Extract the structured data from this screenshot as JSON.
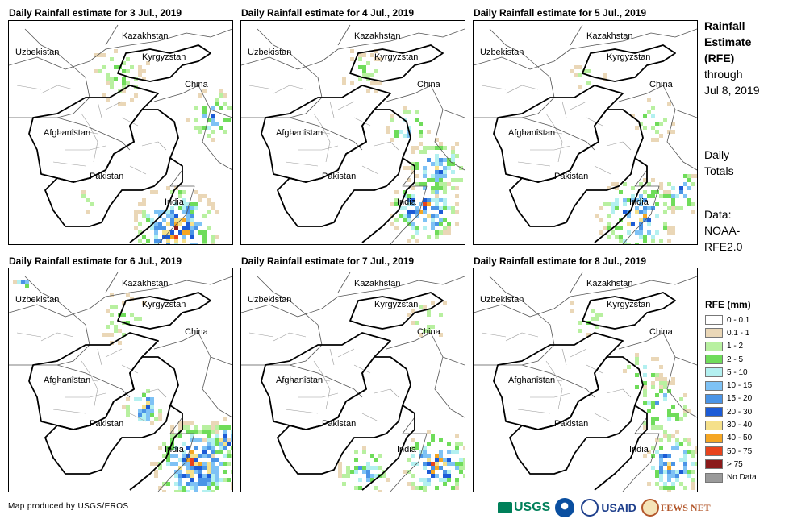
{
  "panels": [
    {
      "title": "Daily Rainfall estimate for 3 Jul., 2019",
      "date": "3 Jul., 2019",
      "intensity": "heavy south India, moderate north"
    },
    {
      "title": "Daily Rainfall estimate for 4 Jul., 2019",
      "date": "4 Jul., 2019",
      "intensity": "moderate"
    },
    {
      "title": "Daily Rainfall estimate for 5 Jul., 2019",
      "date": "5 Jul., 2019",
      "intensity": "moderate-heavy east"
    },
    {
      "title": "Daily Rainfall estimate for 6 Jul., 2019",
      "date": "6 Jul., 2019",
      "intensity": "heavy widespread"
    },
    {
      "title": "Daily Rainfall estimate for 7 Jul., 2019",
      "date": "7 Jul., 2019",
      "intensity": "moderate south"
    },
    {
      "title": "Daily Rainfall estimate for 8 Jul., 2019",
      "date": "8 Jul., 2019",
      "intensity": "moderate east"
    }
  ],
  "map_labels": {
    "kazakhstan": "Kazakhstan",
    "uzbekistan": "Uzbekistan",
    "kyrgyzstan": "Kyrgyzstan",
    "china": "China",
    "afghanistan": "Afghanistan",
    "pakistan": "Pakistan",
    "india": "India"
  },
  "side": {
    "title_line1": "Rainfall",
    "title_line2": "Estimate",
    "title_line3": "(RFE)",
    "through": "through",
    "through_date": "Jul 8, 2019",
    "daily_line1": "Daily",
    "daily_line2": "Totals",
    "data_line1": "Data:",
    "data_line2": "NOAA-",
    "data_line3": "RFE2.0"
  },
  "legend": {
    "title": "RFE (mm)",
    "items": [
      {
        "label": "0 - 0.1",
        "color": "#ffffff"
      },
      {
        "label": "0.1 - 1",
        "color": "#ead7b7"
      },
      {
        "label": "1 - 2",
        "color": "#b8f0a0"
      },
      {
        "label": "2 - 5",
        "color": "#6fdc5a"
      },
      {
        "label": "5 - 10",
        "color": "#b3f0f0"
      },
      {
        "label": "10 - 15",
        "color": "#7ec2f5"
      },
      {
        "label": "15 - 20",
        "color": "#4a94e6"
      },
      {
        "label": "20 - 30",
        "color": "#1c5bd6"
      },
      {
        "label": "30 - 40",
        "color": "#f5e08a"
      },
      {
        "label": "40 - 50",
        "color": "#f5a623"
      },
      {
        "label": "50 - 75",
        "color": "#e8431c"
      },
      {
        "label": "> 75",
        "color": "#8b1a1a"
      },
      {
        "label": "No Data",
        "color": "#9a9a9a"
      }
    ]
  },
  "credit": "Map produced by USGS/EROS",
  "logos": {
    "usgs": "USGS",
    "usaid": "USAID",
    "fews": "FEWS NET"
  }
}
